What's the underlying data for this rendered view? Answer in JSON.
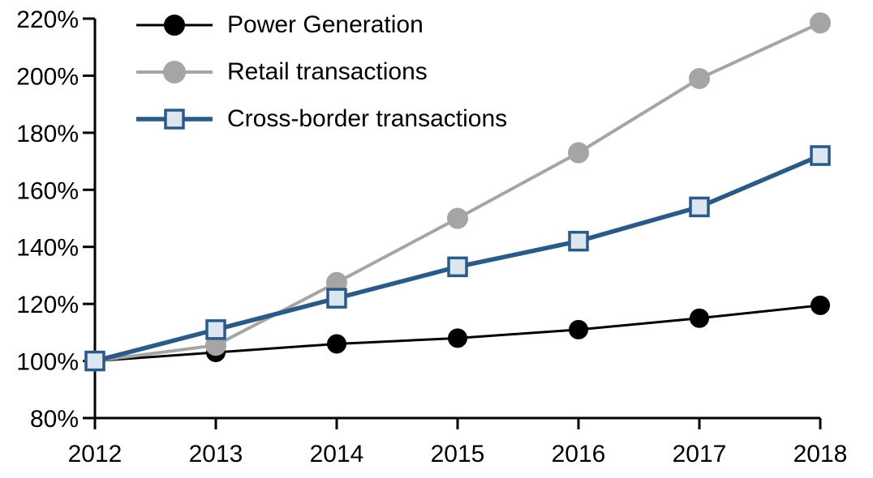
{
  "chart_data": {
    "type": "line",
    "title": "",
    "x_labels": [
      "2012",
      "2013",
      "2014",
      "2015",
      "2016",
      "2017",
      "2018"
    ],
    "ylim": [
      80,
      220
    ],
    "ytick_step": 20,
    "ytick_labels_top_to_bottom": [
      "220%",
      "200%",
      "180%",
      "160%",
      "140%",
      "120%",
      "100%",
      "80%"
    ],
    "ytick_values_top_to_bottom": [
      220,
      200,
      180,
      160,
      140,
      120,
      100,
      80
    ],
    "grid": false,
    "legend_position": "top-left-inside",
    "axis_color": "#000000",
    "series": [
      {
        "name": "Power Generation",
        "values": [
          100,
          103,
          106,
          108,
          111,
          115,
          119.5
        ],
        "color": "#000000",
        "marker": "circle",
        "marker_fill": "#000000",
        "marker_stroke": "#000000",
        "marker_size": 23,
        "line_width": 3
      },
      {
        "name": "Retail transactions",
        "values": [
          100,
          105.5,
          127.5,
          150,
          173,
          199,
          218.5
        ],
        "color": "#A5A5A5",
        "marker": "circle",
        "marker_fill": "#A5A5A5",
        "marker_stroke": "#A5A5A5",
        "marker_size": 25,
        "line_width": 4
      },
      {
        "name": "Cross-border transactions",
        "values": [
          100,
          111,
          122,
          133,
          142,
          154,
          172
        ],
        "color": "#2B5A87",
        "marker": "square",
        "marker_fill": "#DCE6F1",
        "marker_stroke": "#2B5A87",
        "marker_size": 22,
        "line_width": 5.5
      }
    ]
  }
}
